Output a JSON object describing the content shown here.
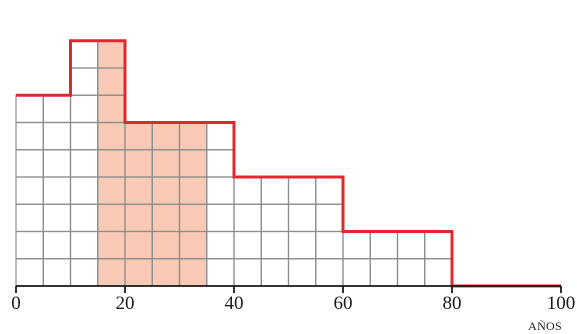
{
  "chart_data": {
    "type": "histogram",
    "title": "",
    "xlabel": "AÑOS",
    "ylabel": "",
    "xlim": [
      0,
      100
    ],
    "ylim": [
      0,
      9
    ],
    "cell_width": 5,
    "bins": [
      {
        "x0": 0,
        "x1": 10,
        "height": 7
      },
      {
        "x0": 10,
        "x1": 20,
        "height": 9
      },
      {
        "x0": 20,
        "x1": 40,
        "height": 6
      },
      {
        "x0": 40,
        "x1": 60,
        "height": 4
      },
      {
        "x0": 60,
        "x1": 80,
        "height": 2
      },
      {
        "x0": 80,
        "x1": 100,
        "height": 0
      }
    ],
    "highlight": {
      "x0": 15,
      "x1": 35
    },
    "x_ticks": [
      {
        "value": 0,
        "label": "0"
      },
      {
        "value": 20,
        "label": "20"
      },
      {
        "value": 40,
        "label": "40"
      },
      {
        "value": 60,
        "label": "60"
      },
      {
        "value": 80,
        "label": "80"
      },
      {
        "value": 100,
        "label": "100"
      }
    ],
    "colors": {
      "outline": "#e0282e",
      "highlight_fill": "#f8cab5",
      "grid": "#8c8c8c",
      "axis": "#1a1a1a"
    }
  }
}
